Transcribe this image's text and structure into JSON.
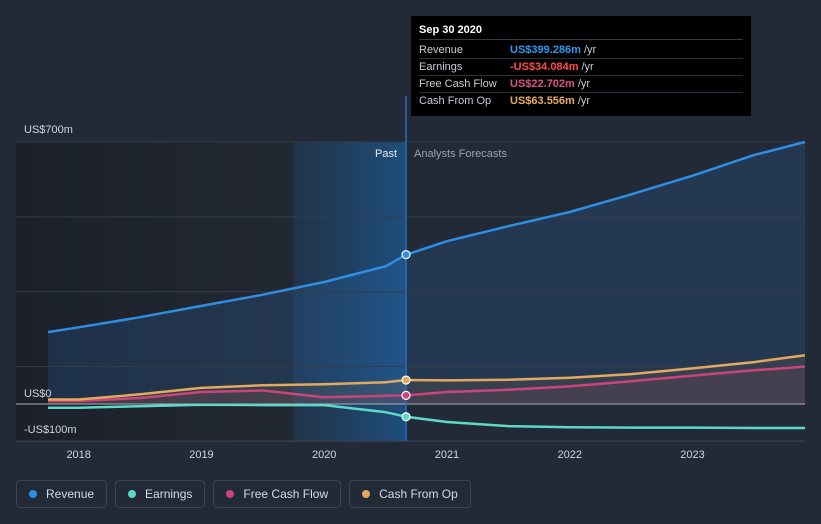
{
  "chart_data": {
    "type": "line",
    "x": [
      "2017-10",
      "2018-01",
      "2018-07",
      "2019-01",
      "2019-07",
      "2020-01",
      "2020-07",
      "2020-09",
      "2021-01",
      "2021-07",
      "2022-01",
      "2022-07",
      "2023-01",
      "2023-07",
      "2023-12"
    ],
    "series": [
      {
        "name": "Revenue",
        "color": "#2e8ee3",
        "values": [
          192,
          205,
          232,
          262,
          292,
          326,
          368,
          399,
          435,
          475,
          513,
          560,
          610,
          665,
          700
        ]
      },
      {
        "name": "Earnings",
        "color": "#5ed9c8",
        "values": [
          -10,
          -10,
          -6,
          -2,
          -3,
          -3,
          -22,
          -34,
          -48,
          -59,
          -62,
          -63,
          -63,
          -64,
          -64
        ]
      },
      {
        "name": "Free Cash Flow",
        "color": "#c9457a",
        "values": [
          8,
          8,
          16,
          32,
          36,
          18,
          22,
          23,
          32,
          38,
          47,
          61,
          76,
          90,
          100
        ]
      },
      {
        "name": "Cash From Op",
        "color": "#e3a95e",
        "values": [
          12,
          12,
          26,
          43,
          50,
          53,
          58,
          64,
          63,
          65,
          70,
          80,
          95,
          112,
          130
        ]
      }
    ],
    "xticks": [
      "2018",
      "2019",
      "2020",
      "2021",
      "2022",
      "2023"
    ],
    "ytick_labels": [
      "US$700m",
      "US$0",
      "-US$100m"
    ],
    "ylim": [
      -100,
      700
    ],
    "past_label": "Past",
    "forecast_label": "Analysts Forecasts",
    "marker_x": "2020-09",
    "grid": true,
    "legend_position": "bottom"
  },
  "tooltip": {
    "date": "Sep 30 2020",
    "rows": [
      {
        "label": "Revenue",
        "value": "US$399.286m",
        "unit": "/yr",
        "color": "#2e9bf0"
      },
      {
        "label": "Earnings",
        "value": "-US$34.084m",
        "unit": "/yr",
        "color": "#ff4b4b"
      },
      {
        "label": "Free Cash Flow",
        "value": "US$22.702m",
        "unit": "/yr",
        "color": "#d8528a"
      },
      {
        "label": "Cash From Op",
        "value": "US$63.556m",
        "unit": "/yr",
        "color": "#e7ad63"
      }
    ]
  },
  "legend": [
    {
      "label": "Revenue",
      "color": "#2e8ee3"
    },
    {
      "label": "Earnings",
      "color": "#5ed9c8"
    },
    {
      "label": "Free Cash Flow",
      "color": "#c9457a"
    },
    {
      "label": "Cash From Op",
      "color": "#e3a95e"
    }
  ]
}
